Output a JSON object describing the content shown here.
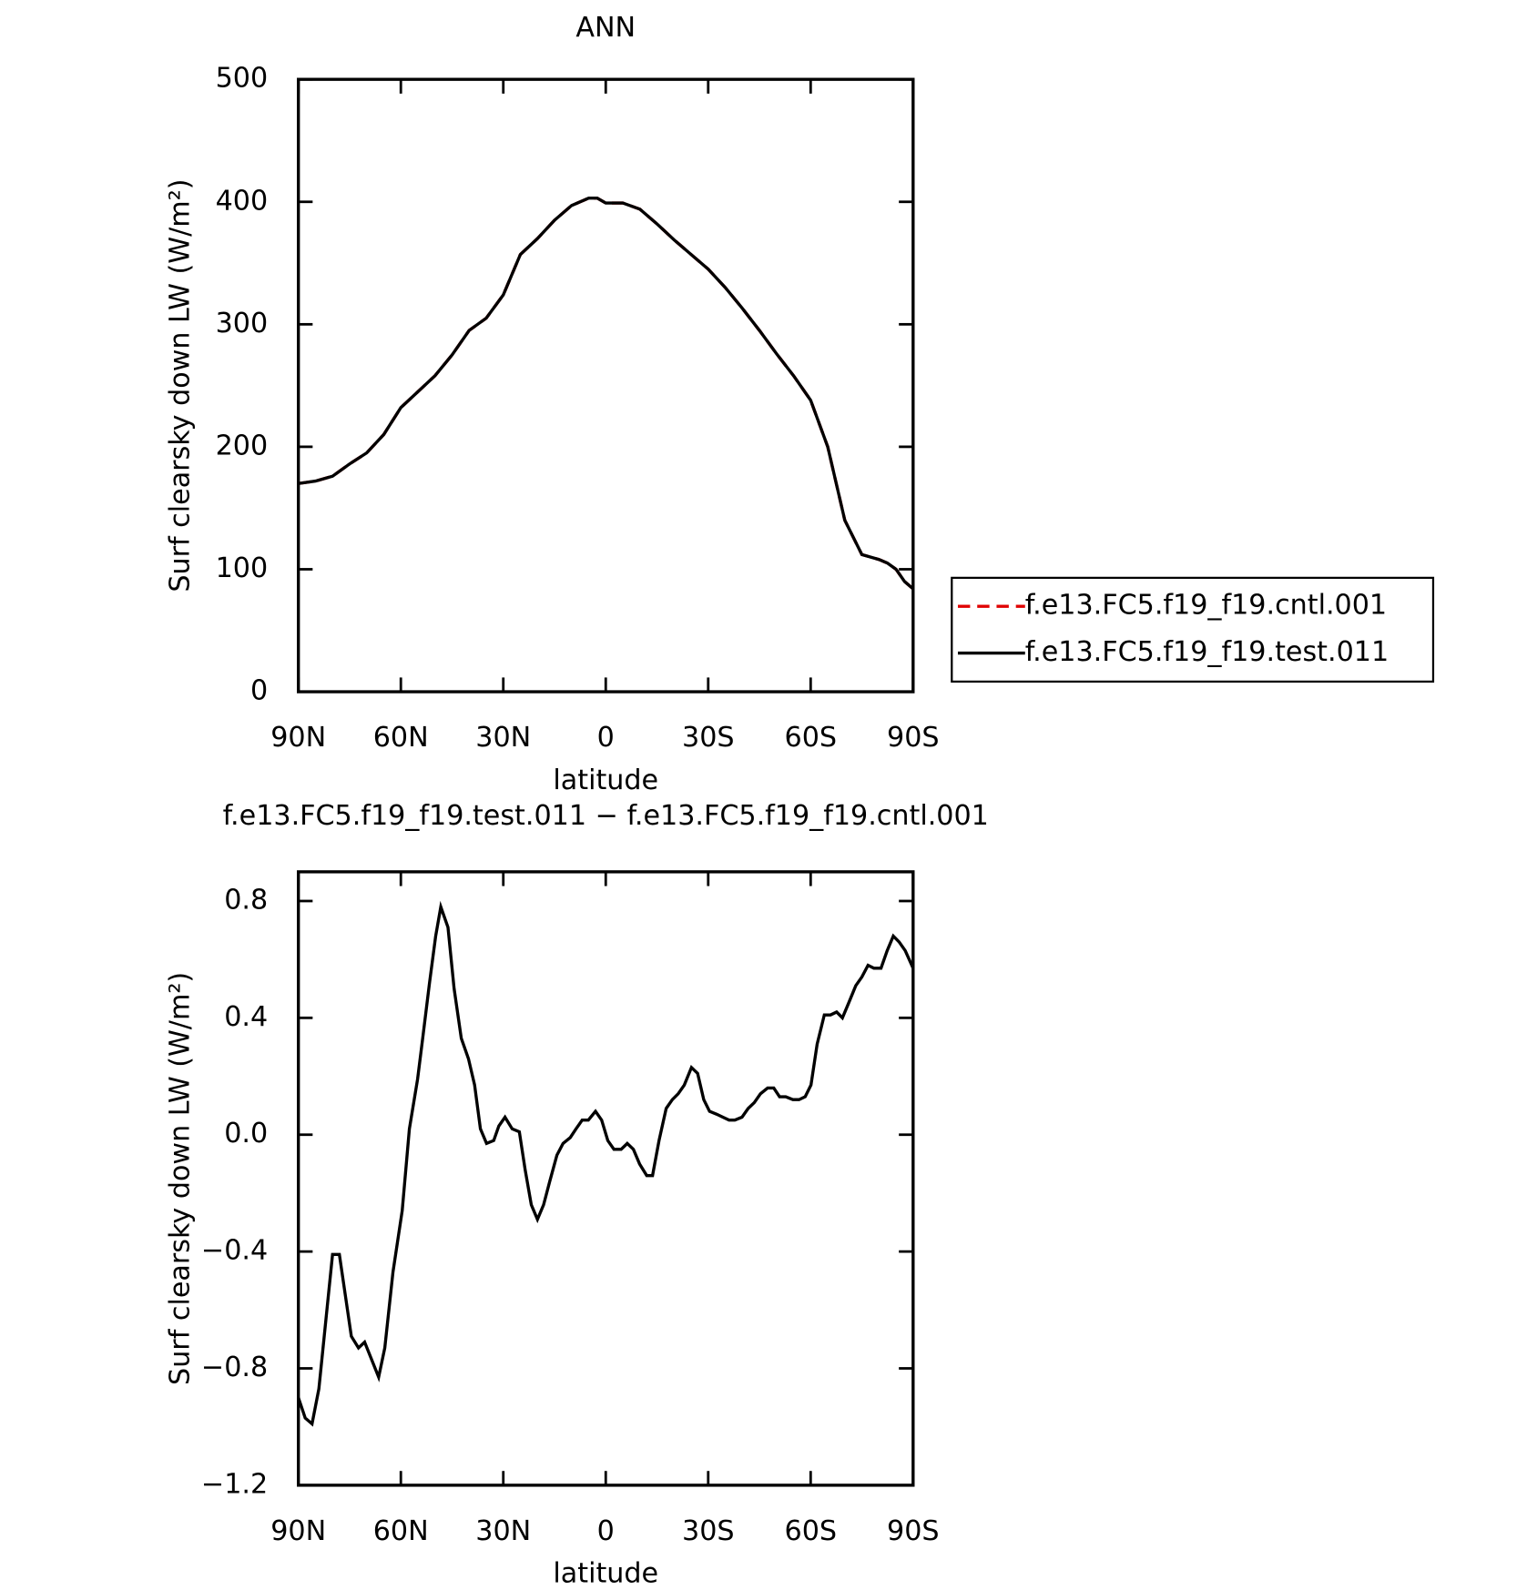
{
  "chart_data": [
    {
      "type": "line",
      "title": "ANN",
      "xlabel": "latitude",
      "ylabel": "Surf clearsky down LW (W/m²)",
      "x": [
        90,
        85,
        80,
        75,
        70,
        65,
        60,
        55,
        50,
        45,
        40,
        35,
        30,
        25,
        20,
        15,
        10,
        5,
        2.5,
        0,
        -5,
        -10,
        -15,
        -20,
        -25,
        -30,
        -35,
        -40,
        -45,
        -50,
        -55,
        -60,
        -65,
        -70,
        -75,
        -80,
        -82.5,
        -85,
        -87.5,
        -90
      ],
      "series": [
        {
          "name": "f.e13.FC5.f19_f19.cntl.001",
          "color": "#e00000",
          "linestyle": "dashed",
          "values": [
            170,
            172,
            176,
            186,
            195,
            210,
            232,
            245,
            258,
            275,
            295,
            305,
            324,
            357,
            370,
            385,
            397,
            403,
            403,
            399,
            399,
            394,
            382,
            369,
            357,
            345,
            330,
            313,
            295,
            276,
            258,
            238,
            200,
            140,
            112,
            108,
            105,
            100,
            90,
            84
          ]
        },
        {
          "name": "f.e13.FC5.f19_f19.test.011",
          "color": "#000000",
          "linestyle": "solid",
          "values": [
            170,
            172,
            176,
            186,
            195,
            210,
            232,
            245,
            258,
            275,
            295,
            305,
            324,
            357,
            370,
            385,
            397,
            403,
            403,
            399,
            399,
            394,
            382,
            369,
            357,
            345,
            330,
            313,
            295,
            276,
            258,
            238,
            200,
            140,
            112,
            108,
            105,
            100,
            90,
            84
          ]
        }
      ],
      "xlim": [
        90,
        -90
      ],
      "xticks": [
        {
          "value": 90,
          "label": "90N"
        },
        {
          "value": 60,
          "label": "60N"
        },
        {
          "value": 30,
          "label": "30N"
        },
        0,
        {
          "value": -30,
          "label": "30S"
        },
        {
          "value": -60,
          "label": "60S"
        },
        {
          "value": -90,
          "label": "90S"
        }
      ],
      "ylim": [
        0,
        500
      ],
      "yticks": [
        0,
        100,
        200,
        300,
        400,
        500
      ],
      "legend": "right"
    },
    {
      "type": "line",
      "title": "f.e13.FC5.f19_f19.test.011 − f.e13.FC5.f19_f19.cntl.001",
      "xlabel": "latitude",
      "ylabel": "Surf clearsky down LW (W/m²)",
      "x": [
        90,
        88,
        86,
        84,
        80,
        78,
        74.5,
        72.4,
        70.6,
        66.5,
        64.7,
        62.3,
        59.6,
        57.5,
        55.1,
        53.6,
        51.6,
        49.8,
        48.3,
        46.2,
        44.4,
        42.3,
        40.2,
        38.4,
        36.7,
        34.9,
        32.8,
        31.3,
        29.5,
        27.4,
        25.3,
        23.6,
        21.8,
        20,
        18.2,
        16.4,
        14.3,
        12.5,
        10.4,
        8.7,
        6.9,
        5.1,
        3,
        1.2,
        -0.6,
        -2.4,
        -4.5,
        -6.3,
        -8.1,
        -9.9,
        -12,
        -13.7,
        -15.6,
        -17.7,
        -19.5,
        -21.2,
        -23,
        -25.1,
        -26.9,
        -28.7,
        -30.4,
        -32.5,
        -34.3,
        -36.1,
        -37.8,
        -39.9,
        -41.7,
        -43.5,
        -45.3,
        -47.4,
        -49.2,
        -50.9,
        -52.7,
        -54.8,
        -56.6,
        -58.4,
        -60.1,
        -61.9,
        -64,
        -65.8,
        -67.6,
        -69.3,
        -71.1,
        -73.2,
        -75,
        -76.8,
        -78.5,
        -80.6,
        -82.4,
        -84.2,
        -85.9,
        -87.7,
        -90
      ],
      "values": [
        -0.9,
        -0.97,
        -0.99,
        -0.87,
        -0.41,
        -0.41,
        -0.69,
        -0.73,
        -0.71,
        -0.83,
        -0.73,
        -0.47,
        -0.26,
        0.02,
        0.19,
        0.33,
        0.52,
        0.68,
        0.78,
        0.71,
        0.5,
        0.33,
        0.26,
        0.17,
        0.02,
        -0.03,
        -0.02,
        0.03,
        0.06,
        0.02,
        0.01,
        -0.12,
        -0.24,
        -0.29,
        -0.24,
        -0.16,
        -0.07,
        -0.03,
        -0.01,
        0.02,
        0.05,
        0.05,
        0.08,
        0.05,
        -0.02,
        -0.05,
        -0.05,
        -0.03,
        -0.05,
        -0.1,
        -0.14,
        -0.14,
        -0.02,
        0.09,
        0.12,
        0.14,
        0.17,
        0.23,
        0.21,
        0.12,
        0.08,
        0.07,
        0.06,
        0.05,
        0.05,
        0.06,
        0.09,
        0.11,
        0.14,
        0.16,
        0.16,
        0.13,
        0.13,
        0.12,
        0.12,
        0.13,
        0.17,
        0.31,
        0.41,
        0.41,
        0.42,
        0.4,
        0.45,
        0.51,
        0.54,
        0.58,
        0.57,
        0.57,
        0.63,
        0.68,
        0.66,
        0.63,
        0.57
      ],
      "color": "#000000",
      "xlim": [
        90,
        -90
      ],
      "xticks": [
        {
          "value": 90,
          "label": "90N"
        },
        {
          "value": 60,
          "label": "60N"
        },
        {
          "value": 30,
          "label": "30N"
        },
        0,
        {
          "value": -30,
          "label": "30S"
        },
        {
          "value": -60,
          "label": "60S"
        },
        {
          "value": -90,
          "label": "90S"
        }
      ],
      "ylim": [
        -1.2,
        0.9
      ],
      "yticks": [
        {
          "value": -1.2,
          "label": "−1.2"
        },
        {
          "value": -0.8,
          "label": "−0.8"
        },
        {
          "value": -0.4,
          "label": "−0.4"
        },
        {
          "value": 0,
          "label": "0.0"
        },
        0.4,
        0.8
      ]
    }
  ]
}
